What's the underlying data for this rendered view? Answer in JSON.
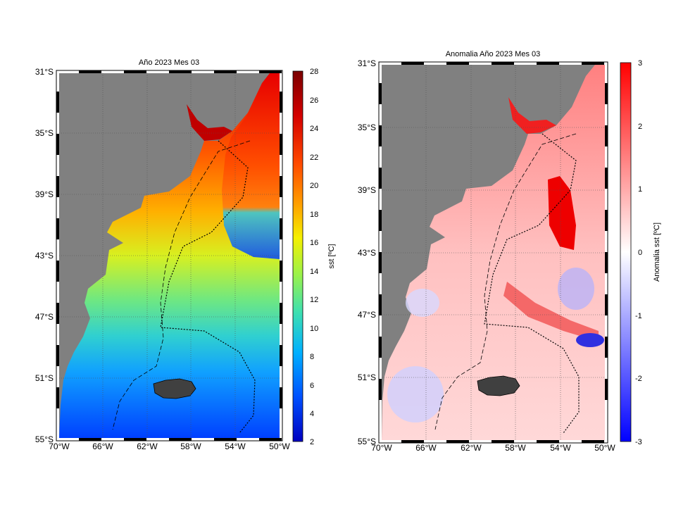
{
  "panels": [
    {
      "id": "sst",
      "title": "Año 2023 Mes 03",
      "colorbar_label": "sst [ºC]",
      "colorbar_ticks": [
        "28",
        "26",
        "24",
        "22",
        "20",
        "18",
        "16",
        "14",
        "12",
        "10",
        "8",
        "6",
        "4",
        "2"
      ],
      "colorbar_colors": [
        "#7a0000",
        "#d40000",
        "#ff4a00",
        "#ffa000",
        "#f5f000",
        "#9af24a",
        "#3ee0b0",
        "#00b0ff",
        "#0050ff",
        "#0000c0"
      ],
      "lat_labels": [
        "31°S",
        "35°S",
        "39°S",
        "43°S",
        "47°S",
        "51°S",
        "55°S"
      ],
      "lon_labels": [
        "70°W",
        "66°W",
        "62°W",
        "58°W",
        "54°W",
        "50°W"
      ]
    },
    {
      "id": "anomaly",
      "title": "Anomalia Año 2023 Mes 03",
      "colorbar_label": "Anomalia sst [ºC]",
      "colorbar_ticks": [
        "3",
        "2",
        "1",
        "0",
        "-1",
        "-2",
        "-3"
      ],
      "colorbar_colors": [
        "#ff0000",
        "#ff8080",
        "#ffffff",
        "#8080ff",
        "#0000ff"
      ],
      "lat_labels": [
        "31°S",
        "35°S",
        "39°S",
        "43°S",
        "47°S",
        "51°S",
        "55°S"
      ],
      "lon_labels": [
        "70°W",
        "66°W",
        "62°W",
        "58°W",
        "54°W",
        "50°W"
      ]
    }
  ]
}
